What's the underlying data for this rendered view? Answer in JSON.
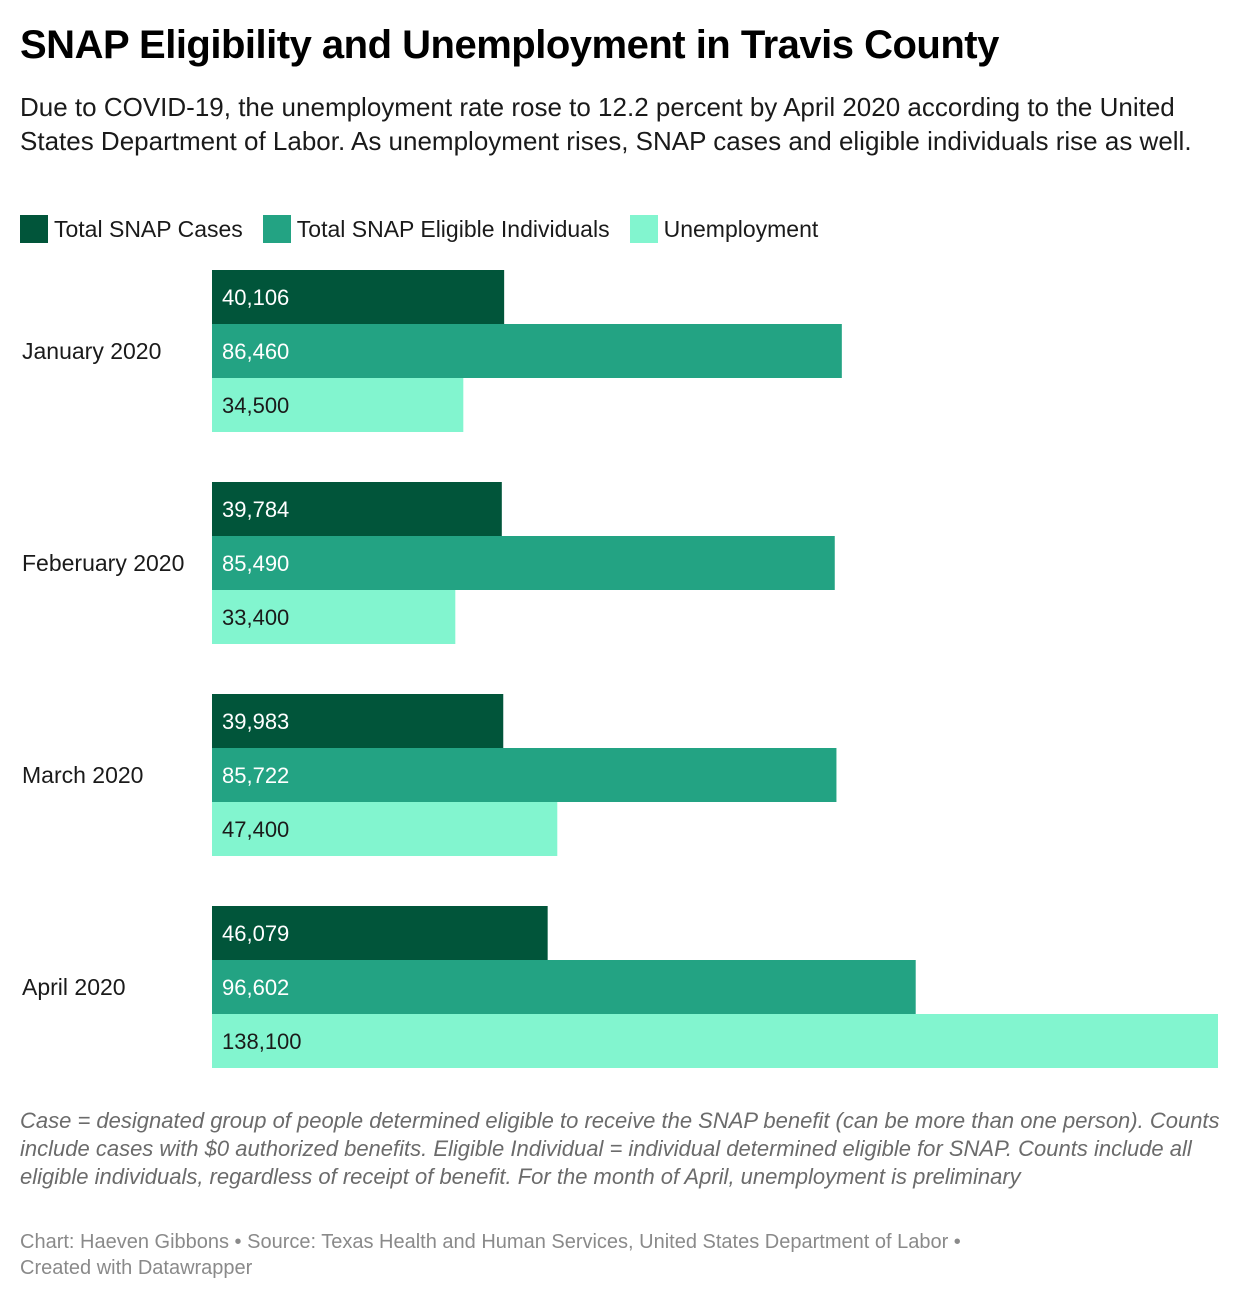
{
  "title": "SNAP Eligibility and Unemployment in Travis County",
  "subtitle": "Due to COVID-19, the unemployment rate rose to 12.2 percent by April 2020 according to the United States Department of Labor. As unemployment rises, SNAP cases and eligible individuals rise as well.",
  "notes": "Case = designated group of people determined eligible to receive the SNAP benefit (can be more than one person). Counts include cases with $0 authorized benefits. Eligible Individual = individual determined eligible for SNAP. Counts include all eligible individuals, regardless of receipt of benefit. For the month of April, unemployment is preliminary",
  "credits": {
    "line1": "Chart: Haeven Gibbons • Source: Texas Health and Human Services, United States Department of Labor •",
    "line2": "Created with Datawrapper"
  },
  "chart_data": {
    "type": "bar",
    "orientation": "horizontal",
    "grouped": true,
    "categories": [
      "January 2020",
      "Feberuary 2020",
      "March 2020",
      "April 2020"
    ],
    "series": [
      {
        "name": "Total SNAP Cases",
        "color": "#01553a",
        "label_color": "#ffffff",
        "values": [
          40106,
          39784,
          39983,
          46079
        ]
      },
      {
        "name": "Total SNAP Eligible Individuals",
        "color": "#23a383",
        "label_color": "#ffffff",
        "values": [
          86460,
          85490,
          85722,
          96602
        ]
      },
      {
        "name": "Unemployment",
        "color": "#82f5cf",
        "label_color": "#1a1a1a",
        "values": [
          34500,
          33400,
          47400,
          138100
        ]
      }
    ],
    "xlim": [
      0,
      138100
    ],
    "legend": "top-left",
    "grid": false,
    "value_labels": "inside-left"
  }
}
